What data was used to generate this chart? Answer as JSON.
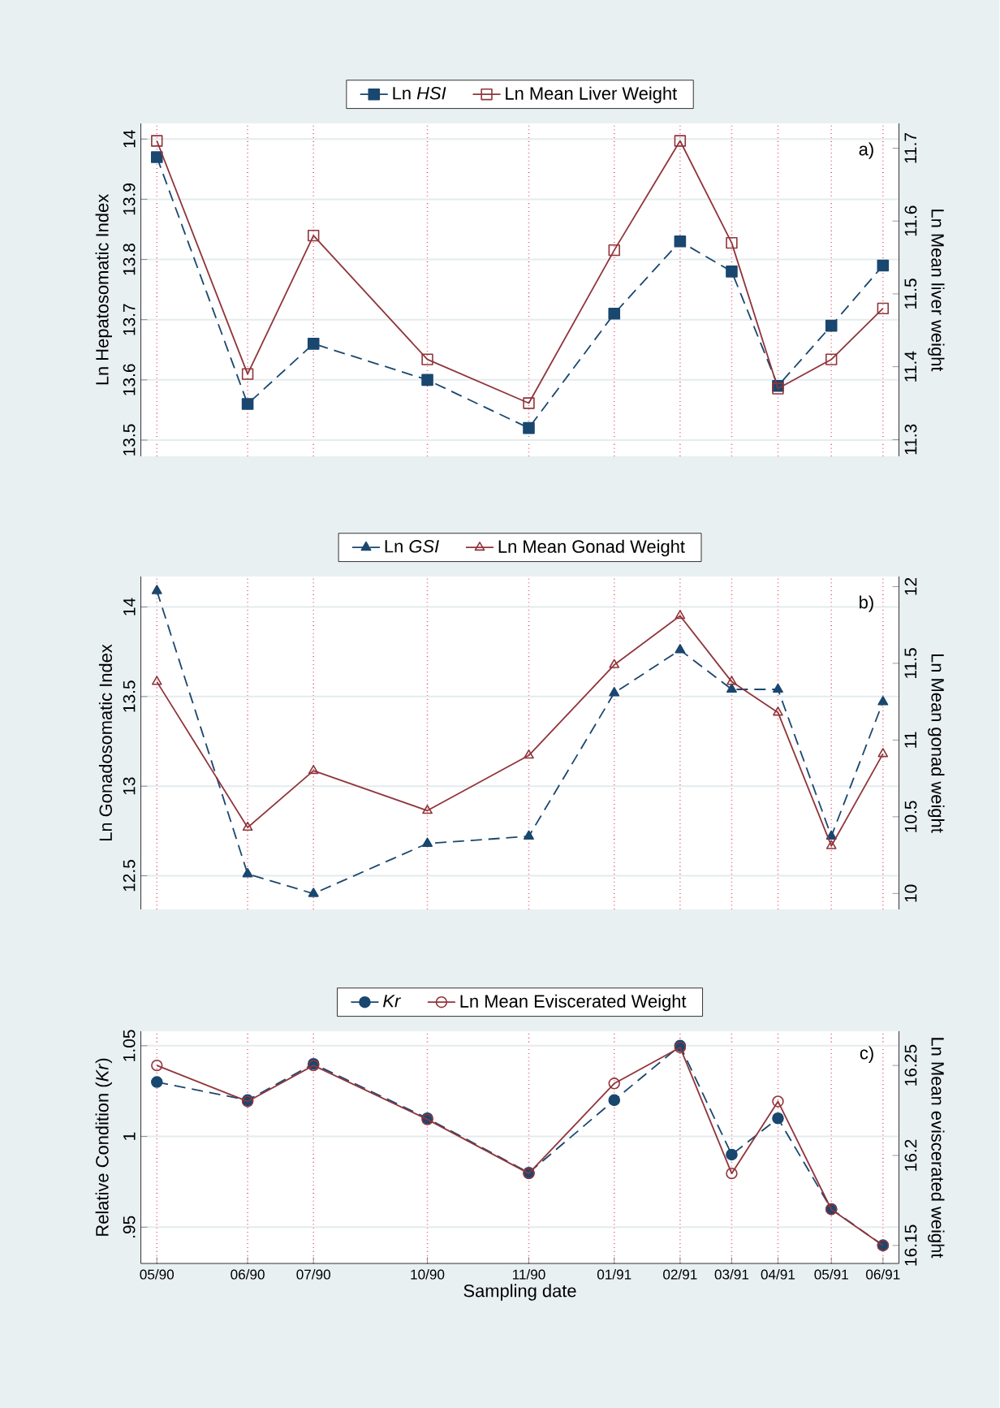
{
  "chart_data": [
    {
      "type": "line",
      "ylabel": "Ln Hepatosomatic Index",
      "y2label": "Ln Mean liver weight",
      "x": [
        "1990-05-04",
        "1990-06-24",
        "1990-07-31",
        "1990-10-03",
        "1990-11-29",
        "1991-01-16",
        "1991-02-22",
        "1991-03-23",
        "1991-04-18",
        "1991-05-18",
        "1991-06-16"
      ],
      "xlim": [
        "1990-04-25",
        "1991-06-25"
      ],
      "xticks": [
        {
          "value": "1990-05-04",
          "label": null
        },
        {
          "value": "1990-06-24",
          "label": null
        },
        {
          "value": "1990-07-31",
          "label": null
        },
        {
          "value": "1990-10-03",
          "label": null
        },
        {
          "value": "1990-11-29",
          "label": null
        },
        {
          "value": "1991-01-16",
          "label": null
        },
        {
          "value": "1991-02-22",
          "label": null
        },
        {
          "value": "1991-03-23",
          "label": null
        },
        {
          "value": "1991-04-18",
          "label": null
        },
        {
          "value": "1991-05-18",
          "label": null
        },
        {
          "value": "1991-06-16",
          "label": null
        }
      ],
      "ylim": [
        13.473,
        14.026
      ],
      "yticks": [
        13.5,
        13.6,
        13.7,
        13.8,
        13.9,
        14
      ],
      "y2lim": [
        11.277,
        11.734
      ],
      "y2ticks": [
        11.3,
        11.4,
        11.5,
        11.6,
        11.7
      ],
      "series": [
        {
          "name": "Ln *HSI*",
          "color": "#1a476f",
          "line_style": "dashed",
          "values": [
            13.97,
            13.56,
            13.66,
            13.6,
            13.52,
            13.71,
            13.83,
            13.78,
            13.59,
            13.69,
            13.79
          ]
        },
        {
          "name": "Ln Mean Liver Weight",
          "color": "#90353b",
          "line_style": "solid",
          "axis": "y2",
          "values": [
            11.71,
            11.39,
            11.58,
            11.41,
            11.35,
            11.56,
            11.71,
            11.57,
            11.37,
            11.41,
            11.48
          ]
        }
      ],
      "marker": "square",
      "grid": true,
      "legend": "top",
      "tick_labels": "y",
      "annotations": [
        "a)"
      ]
    },
    {
      "type": "line",
      "ylabel": "Ln Gonadosomatic Index",
      "y2label": "Ln Mean gonad weight",
      "x": [
        "1990-05-04",
        "1990-06-24",
        "1990-07-31",
        "1990-10-03",
        "1990-11-29",
        "1991-01-16",
        "1991-02-22",
        "1991-03-23",
        "1991-04-18",
        "1991-05-18",
        "1991-06-16"
      ],
      "xlim": [
        "1990-04-25",
        "1991-06-25"
      ],
      "xticks": [
        {
          "value": "1990-05-04",
          "label": null
        },
        {
          "value": "1990-06-24",
          "label": null
        },
        {
          "value": "1990-07-31",
          "label": null
        },
        {
          "value": "1990-10-03",
          "label": null
        },
        {
          "value": "1990-11-29",
          "label": null
        },
        {
          "value": "1991-01-16",
          "label": null
        },
        {
          "value": "1991-02-22",
          "label": null
        },
        {
          "value": "1991-03-23",
          "label": null
        },
        {
          "value": "1991-04-18",
          "label": null
        },
        {
          "value": "1991-05-18",
          "label": null
        },
        {
          "value": "1991-06-16",
          "label": null
        }
      ],
      "ylim": [
        12.312,
        14.17
      ],
      "yticks": [
        12.5,
        13,
        13.5,
        14
      ],
      "y2lim": [
        9.896,
        12.066
      ],
      "y2ticks": [
        10,
        10.5,
        11,
        11.5,
        12
      ],
      "series": [
        {
          "name": "Ln *GSI*",
          "color": "#1a476f",
          "line_style": "dashed",
          "values": [
            14.09,
            12.51,
            12.4,
            12.68,
            12.72,
            13.52,
            13.76,
            13.54,
            13.54,
            12.72,
            13.47
          ]
        },
        {
          "name": "Ln Mean Gonad Weight",
          "color": "#90353b",
          "line_style": "solid",
          "axis": "y2",
          "values": [
            11.38,
            10.43,
            10.8,
            10.54,
            10.9,
            11.49,
            11.81,
            11.38,
            11.18,
            10.31,
            10.91
          ]
        }
      ],
      "marker": "triangle",
      "grid": true,
      "legend": "top",
      "tick_labels": "y",
      "annotations": [
        "b)"
      ]
    },
    {
      "type": "line",
      "xlabel": "Sampling date",
      "ylabel": "Relative Condition (*Kr*)",
      "y2label": "Ln Mean eviscerated weight",
      "x": [
        "1990-05-04",
        "1990-06-24",
        "1990-07-31",
        "1990-10-03",
        "1990-11-29",
        "1991-01-16",
        "1991-02-22",
        "1991-03-23",
        "1991-04-18",
        "1991-05-18",
        "1991-06-16"
      ],
      "xlim": [
        "1990-04-25",
        "1991-06-25"
      ],
      "xticks": [
        {
          "value": "1990-05-04",
          "label": "05/90"
        },
        {
          "value": "1990-06-24",
          "label": "06/90"
        },
        {
          "value": "1990-07-31",
          "label": "07/90"
        },
        {
          "value": "1990-10-03",
          "label": "10/90"
        },
        {
          "value": "1990-11-29",
          "label": "11/90"
        },
        {
          "value": "1991-01-16",
          "label": "01/91"
        },
        {
          "value": "1991-02-22",
          "label": "02/91"
        },
        {
          "value": "1991-03-23",
          "label": "03/91"
        },
        {
          "value": "1991-04-18",
          "label": "04/91"
        },
        {
          "value": "1991-05-18",
          "label": "05/91"
        },
        {
          "value": "1991-06-16",
          "label": "06/91"
        }
      ],
      "ylim": [
        0.93,
        1.058
      ],
      "yticks": [
        {
          "value": 0.95,
          "label": ".95"
        },
        1,
        1.05
      ],
      "y2lim": [
        16.14,
        16.269
      ],
      "y2ticks": [
        16.15,
        16.2,
        16.25
      ],
      "series": [
        {
          "name": "*Kr*",
          "color": "#1a476f",
          "line_style": "dashed",
          "values": [
            1.03,
            1.02,
            1.04,
            1.01,
            0.98,
            1.02,
            1.05,
            0.99,
            1.01,
            0.96,
            0.94
          ]
        },
        {
          "name": "Ln Mean Eviscerated Weight",
          "color": "#90353b",
          "line_style": "solid",
          "axis": "y2",
          "values": [
            16.25,
            16.23,
            16.25,
            16.22,
            16.19,
            16.24,
            16.26,
            16.19,
            16.23,
            16.17,
            16.15
          ]
        }
      ],
      "marker": "circle",
      "grid": true,
      "legend": "top",
      "annotations": [
        "c)"
      ]
    }
  ]
}
